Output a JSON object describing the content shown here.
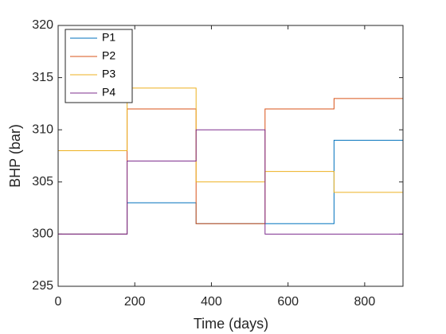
{
  "chart_data": {
    "type": "stairs",
    "x_label": "Time (days)",
    "y_label": "BHP (bar)",
    "x": [
      0,
      180,
      360,
      540,
      720,
      900
    ],
    "series": [
      {
        "name": "P1",
        "color": "#0072BD",
        "values": [
          300,
          303,
          301,
          301,
          309,
          309
        ]
      },
      {
        "name": "P2",
        "color": "#D95319",
        "values": [
          300,
          312,
          301,
          312,
          313,
          313
        ]
      },
      {
        "name": "P3",
        "color": "#EDB120",
        "values": [
          308,
          314,
          305,
          306,
          304,
          304
        ]
      },
      {
        "name": "P4",
        "color": "#7E2F8E",
        "values": [
          300,
          307,
          310,
          300,
          300,
          300
        ]
      }
    ],
    "xlim": [
      0,
      900
    ],
    "xticks": [
      0,
      200,
      400,
      600,
      800
    ],
    "ylim": [
      295,
      320
    ],
    "yticks": [
      295,
      300,
      305,
      310,
      315,
      320
    ],
    "legend": "upper left",
    "grid": false
  }
}
